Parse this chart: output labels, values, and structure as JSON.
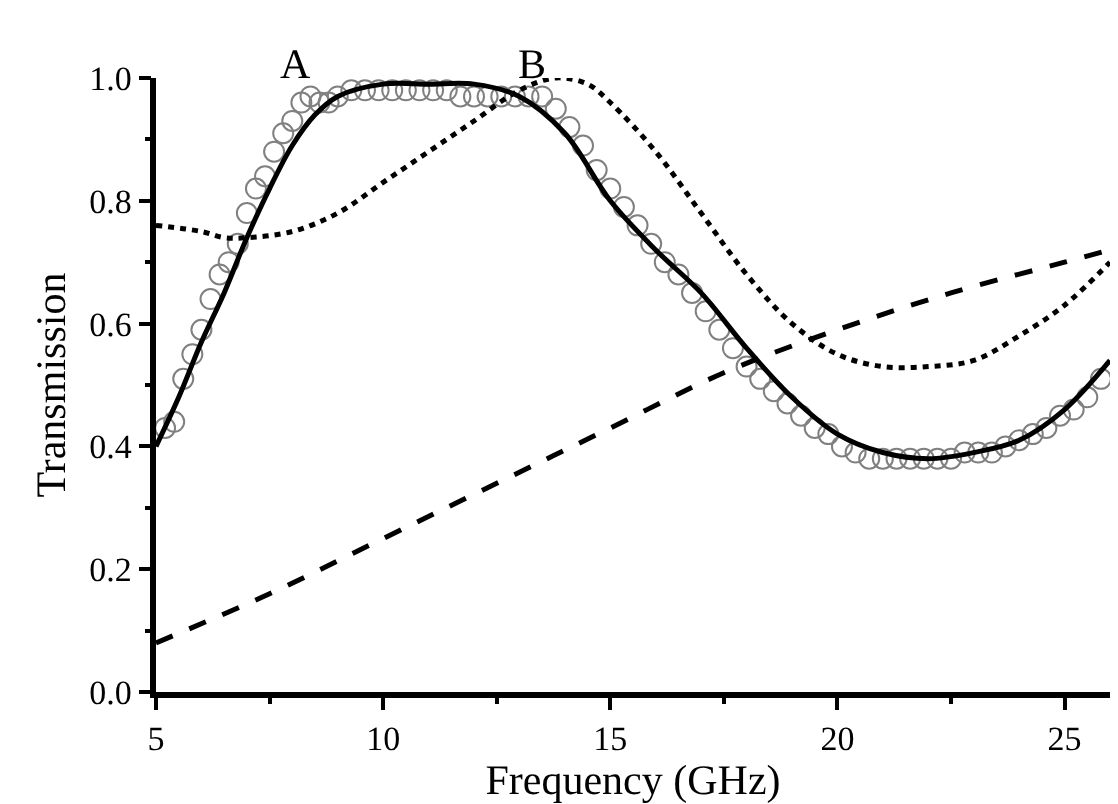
{
  "chart_data": {
    "type": "line",
    "xlabel": "Frequency (GHz)",
    "ylabel": "Transmission",
    "xlim": [
      5,
      26
    ],
    "xticks": [
      5,
      10,
      15,
      20,
      25
    ],
    "ylim": [
      0,
      1
    ],
    "yticks": [
      {
        "value": 0,
        "label": "0.0"
      },
      0.2,
      0.4,
      0.6,
      0.8,
      {
        "value": 1,
        "label": "1.0"
      }
    ],
    "annotations": [
      "A",
      "B"
    ],
    "series": [
      {
        "type": "scatter",
        "marker": "circle",
        "color": "#808080",
        "x": [
          5.2,
          5.4,
          5.6,
          5.8,
          6.0,
          6.2,
          6.4,
          6.6,
          6.8,
          7.0,
          7.2,
          7.4,
          7.6,
          7.8,
          8.0,
          8.2,
          8.4,
          8.6,
          8.8,
          9.0,
          9.3,
          9.6,
          9.9,
          10.2,
          10.5,
          10.8,
          11.1,
          11.4,
          11.7,
          12.0,
          12.3,
          12.6,
          12.9,
          13.2,
          13.5,
          13.8,
          14.1,
          14.4,
          14.7,
          15.0,
          15.3,
          15.6,
          15.9,
          16.2,
          16.5,
          16.8,
          17.1,
          17.4,
          17.7,
          18.0,
          18.3,
          18.6,
          18.9,
          19.2,
          19.5,
          19.8,
          20.1,
          20.4,
          20.7,
          21.0,
          21.3,
          21.6,
          21.9,
          22.2,
          22.5,
          22.8,
          23.1,
          23.4,
          23.7,
          24.0,
          24.3,
          24.6,
          24.9,
          25.2,
          25.5,
          25.8
        ],
        "values": [
          0.43,
          0.44,
          0.51,
          0.55,
          0.59,
          0.64,
          0.68,
          0.7,
          0.73,
          0.78,
          0.82,
          0.84,
          0.88,
          0.91,
          0.93,
          0.96,
          0.97,
          0.96,
          0.96,
          0.97,
          0.98,
          0.98,
          0.98,
          0.98,
          0.98,
          0.98,
          0.98,
          0.98,
          0.97,
          0.97,
          0.97,
          0.97,
          0.97,
          0.97,
          0.97,
          0.95,
          0.92,
          0.89,
          0.85,
          0.82,
          0.79,
          0.76,
          0.73,
          0.7,
          0.68,
          0.65,
          0.62,
          0.59,
          0.56,
          0.53,
          0.51,
          0.49,
          0.47,
          0.45,
          0.43,
          0.42,
          0.4,
          0.39,
          0.38,
          0.38,
          0.38,
          0.38,
          0.38,
          0.38,
          0.38,
          0.39,
          0.39,
          0.39,
          0.4,
          0.41,
          0.42,
          0.43,
          0.45,
          0.46,
          0.48,
          0.51
        ]
      },
      {
        "marker": "none",
        "line_style": "solid",
        "color": "#000000",
        "x": [
          5,
          5.5,
          6,
          6.5,
          7,
          7.5,
          8,
          8.5,
          9,
          10,
          11,
          12,
          13,
          14,
          15,
          16,
          17,
          18,
          19,
          20,
          21,
          22,
          23,
          24,
          25,
          26
        ],
        "values": [
          0.4,
          0.48,
          0.57,
          0.65,
          0.74,
          0.82,
          0.89,
          0.94,
          0.97,
          0.99,
          0.99,
          0.99,
          0.97,
          0.91,
          0.8,
          0.72,
          0.65,
          0.56,
          0.48,
          0.42,
          0.39,
          0.38,
          0.39,
          0.41,
          0.46,
          0.54
        ]
      },
      {
        "type": "line",
        "marker": "none",
        "line_style": "dotted",
        "color": "#000000",
        "x": [
          5,
          6,
          6.5,
          7,
          8,
          9,
          10,
          11,
          12,
          13,
          13.8,
          14.5,
          15,
          16,
          17,
          18,
          19,
          20,
          21,
          22,
          23,
          24,
          25,
          26
        ],
        "values": [
          0.76,
          0.75,
          0.74,
          0.74,
          0.75,
          0.78,
          0.83,
          0.88,
          0.93,
          0.98,
          1.0,
          0.99,
          0.96,
          0.88,
          0.78,
          0.68,
          0.6,
          0.55,
          0.53,
          0.53,
          0.54,
          0.58,
          0.63,
          0.7
        ]
      },
      {
        "type": "line",
        "marker": "none",
        "line_style": "dashed",
        "color": "#000000",
        "x": [
          5,
          7.5,
          10,
          12.5,
          15,
          17.5,
          20,
          22.5,
          25,
          26
        ],
        "values": [
          0.08,
          0.16,
          0.25,
          0.34,
          0.43,
          0.52,
          0.59,
          0.65,
          0.7,
          0.72
        ]
      }
    ]
  }
}
